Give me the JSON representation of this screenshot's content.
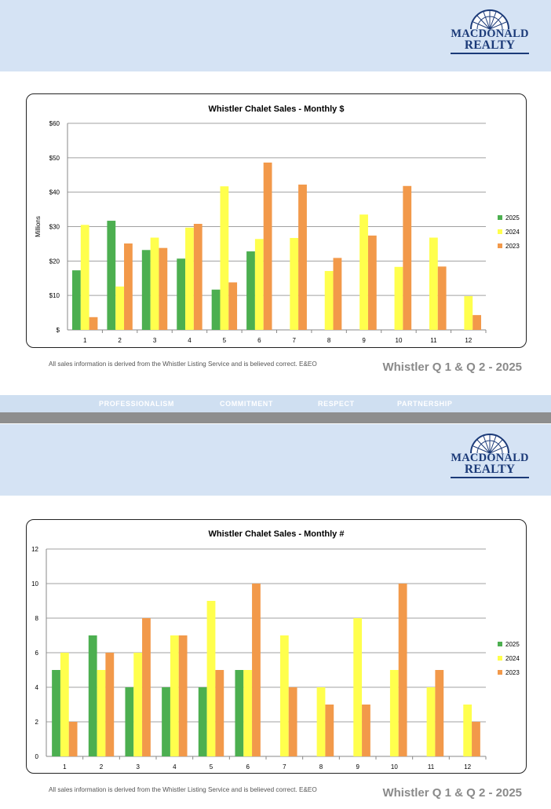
{
  "brand": {
    "line1": "MACDONALD",
    "line2": "REALTY"
  },
  "disclaimer": "All sales information is derived from the Whistler Listing Service and is believed correct. E&EO",
  "footer_title": "Whistler Q 1 & Q 2 - 2025",
  "values": [
    "PROFESSIONALISM",
    "COMMITMENT",
    "RESPECT",
    "PARTNERSHIP"
  ],
  "colors": {
    "2025": "#4caf50",
    "2024": "#ffff4d",
    "2023": "#f2994a"
  },
  "chart_data": [
    {
      "type": "bar",
      "title": "Whistler Chalet Sales - Monthly $",
      "xlabel": "",
      "ylabel": "Millions",
      "ylim": [
        0,
        60
      ],
      "yticks": [
        0,
        10,
        20,
        30,
        40,
        50,
        60
      ],
      "ytick_labels": [
        "$",
        "$10",
        "$20",
        "$30",
        "$40",
        "$50",
        "$60"
      ],
      "categories": [
        "1",
        "2",
        "3",
        "4",
        "5",
        "6",
        "7",
        "8",
        "9",
        "10",
        "11",
        "12"
      ],
      "legend_position": "right",
      "series": [
        {
          "name": "2025",
          "color": "#4caf50",
          "values": [
            17.3,
            31.7,
            23.2,
            20.7,
            11.7,
            22.8,
            null,
            null,
            null,
            null,
            null,
            null
          ]
        },
        {
          "name": "2024",
          "color": "#ffff4d",
          "values": [
            30.5,
            12.6,
            26.8,
            29.7,
            41.7,
            26.4,
            26.7,
            17.1,
            33.5,
            18.3,
            26.8,
            9.8
          ]
        },
        {
          "name": "2023",
          "color": "#f2994a",
          "values": [
            3.7,
            25.1,
            23.8,
            30.8,
            13.8,
            48.6,
            42.2,
            20.9,
            27.4,
            41.8,
            18.4,
            4.3
          ]
        }
      ]
    },
    {
      "type": "bar",
      "title": "Whistler Chalet Sales - Monthly #",
      "xlabel": "",
      "ylabel": "",
      "ylim": [
        0,
        12
      ],
      "yticks": [
        0,
        2,
        4,
        6,
        8,
        10,
        12
      ],
      "ytick_labels": [
        "0",
        "2",
        "4",
        "6",
        "8",
        "10",
        "12"
      ],
      "categories": [
        "1",
        "2",
        "3",
        "4",
        "5",
        "6",
        "7",
        "8",
        "9",
        "10",
        "11",
        "12"
      ],
      "legend_position": "right",
      "series": [
        {
          "name": "2025",
          "color": "#4caf50",
          "values": [
            5,
            7,
            4,
            4,
            4,
            5,
            null,
            null,
            null,
            null,
            null,
            null
          ]
        },
        {
          "name": "2024",
          "color": "#ffff4d",
          "values": [
            6,
            5,
            6,
            7,
            9,
            5,
            7,
            4,
            8,
            5,
            4,
            3
          ]
        },
        {
          "name": "2023",
          "color": "#f2994a",
          "values": [
            2,
            6,
            8,
            7,
            5,
            10,
            4,
            3,
            3,
            10,
            5,
            2
          ]
        }
      ]
    }
  ]
}
